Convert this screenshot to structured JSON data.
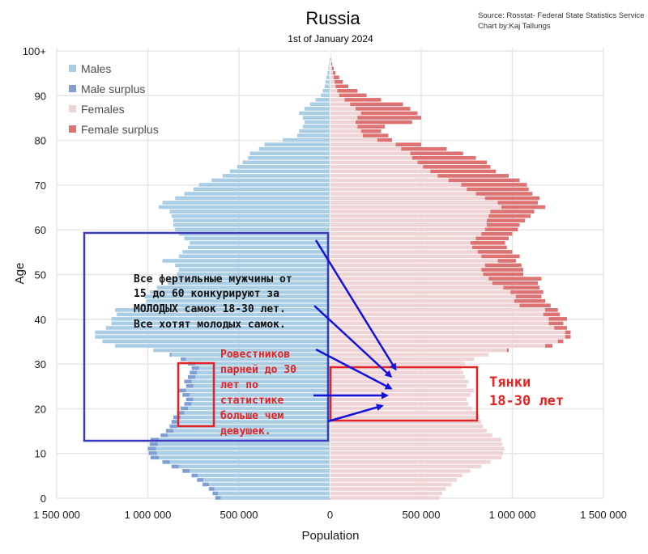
{
  "chart_data": {
    "type": "bar",
    "title": "Russia",
    "subtitle": "1st of January 2024",
    "source_lines": [
      "Source: Rosstat- Federal State Statistics Service",
      "Chart by:Kaj Tallungs"
    ],
    "xlabel": "Population",
    "ylabel": "Age",
    "xlim": [
      -1500000,
      1500000
    ],
    "ylim": [
      0,
      100
    ],
    "x_tick_values": [
      -1500000,
      -1000000,
      -500000,
      0,
      500000,
      1000000,
      1500000
    ],
    "x_tick_labels": [
      "1 500 000",
      "1 000 000",
      "500 000",
      "0",
      "500 000",
      "1 000 000",
      "1 500 000"
    ],
    "y_tick_values": [
      0,
      10,
      20,
      30,
      40,
      50,
      60,
      70,
      80,
      90,
      100
    ],
    "y_tick_labels": [
      "0",
      "10",
      "20",
      "30",
      "40",
      "50",
      "60",
      "70",
      "80",
      "90",
      "100+"
    ],
    "grid": true,
    "legend_position": "top-left",
    "legend": [
      {
        "label": "Males",
        "color": "#aacde6"
      },
      {
        "label": "Male surplus",
        "color": "#7f9fd2"
      },
      {
        "label": "Females",
        "color": "#efd4d6"
      },
      {
        "label": "Female surplus",
        "color": "#dc7372"
      }
    ],
    "ages": [
      0,
      1,
      2,
      3,
      4,
      5,
      6,
      7,
      8,
      9,
      10,
      11,
      12,
      13,
      14,
      15,
      16,
      17,
      18,
      19,
      20,
      21,
      22,
      23,
      24,
      25,
      26,
      27,
      28,
      29,
      30,
      31,
      32,
      33,
      34,
      35,
      36,
      37,
      38,
      39,
      40,
      41,
      42,
      43,
      44,
      45,
      46,
      47,
      48,
      49,
      50,
      51,
      52,
      53,
      54,
      55,
      56,
      57,
      58,
      59,
      60,
      61,
      62,
      63,
      64,
      65,
      66,
      67,
      68,
      69,
      70,
      71,
      72,
      73,
      74,
      75,
      76,
      77,
      78,
      79,
      80,
      81,
      82,
      83,
      84,
      85,
      86,
      87,
      88,
      89,
      90,
      91,
      92,
      93,
      94,
      95,
      96,
      97,
      98,
      99,
      100
    ],
    "series": [
      {
        "name": "Males",
        "values": [
          630000,
          645000,
          665000,
          700000,
          730000,
          760000,
          810000,
          870000,
          920000,
          985000,
          995000,
          1000000,
          990000,
          985000,
          930000,
          900000,
          880000,
          870000,
          860000,
          840000,
          820000,
          800000,
          790000,
          810000,
          830000,
          790000,
          800000,
          780000,
          770000,
          760000,
          780000,
          820000,
          880000,
          970000,
          1180000,
          1250000,
          1290000,
          1290000,
          1230000,
          1200000,
          1200000,
          1170000,
          1180000,
          1040000,
          1010000,
          1020000,
          990000,
          950000,
          890000,
          870000,
          840000,
          830000,
          850000,
          920000,
          830000,
          810000,
          780000,
          770000,
          800000,
          830000,
          850000,
          860000,
          860000,
          870000,
          880000,
          940000,
          920000,
          850000,
          800000,
          750000,
          720000,
          650000,
          590000,
          550000,
          510000,
          480000,
          450000,
          440000,
          390000,
          360000,
          260000,
          180000,
          170000,
          150000,
          140000,
          150000,
          170000,
          140000,
          110000,
          80000,
          50000,
          40000,
          30000,
          25000,
          20000,
          15000,
          10000,
          7000,
          4000,
          2000,
          1000
        ]
      },
      {
        "name": "Females",
        "values": [
          600000,
          615000,
          635000,
          665000,
          695000,
          725000,
          770000,
          830000,
          880000,
          940000,
          950000,
          955000,
          945000,
          940000,
          890000,
          860000,
          840000,
          830000,
          820000,
          800000,
          780000,
          760000,
          750000,
          770000,
          790000,
          750000,
          760000,
          740000,
          730000,
          720000,
          740000,
          790000,
          870000,
          980000,
          1220000,
          1280000,
          1320000,
          1320000,
          1300000,
          1280000,
          1300000,
          1260000,
          1250000,
          1210000,
          1180000,
          1160000,
          1170000,
          1150000,
          1140000,
          1160000,
          1060000,
          1060000,
          1050000,
          1020000,
          1040000,
          1000000,
          970000,
          960000,
          980000,
          1000000,
          1030000,
          1040000,
          1070000,
          1100000,
          1120000,
          1180000,
          1140000,
          1150000,
          1110000,
          1090000,
          1080000,
          1040000,
          980000,
          910000,
          880000,
          860000,
          800000,
          730000,
          640000,
          500000,
          340000,
          320000,
          280000,
          300000,
          450000,
          500000,
          480000,
          440000,
          400000,
          280000,
          200000,
          150000,
          100000,
          70000,
          50000,
          30000,
          20000,
          12000,
          7000,
          3000,
          1500
        ]
      }
    ],
    "annotations": [
      {
        "lines": [
          "Все фертильные мужчины от",
          "15 до 60 конкурируют за",
          "МОЛОДЫХ самок 18-30 лет.",
          "Все хотят молодых самок."
        ],
        "color": "#111111"
      },
      {
        "lines": [
          "Ровестников",
          "парней до 30",
          "лет по",
          "статистике",
          "больше чем",
          "девушек."
        ],
        "color": "#e32222"
      },
      {
        "lines": [
          "Тянки",
          "18-30 лет"
        ],
        "color": "#e32222"
      }
    ]
  }
}
